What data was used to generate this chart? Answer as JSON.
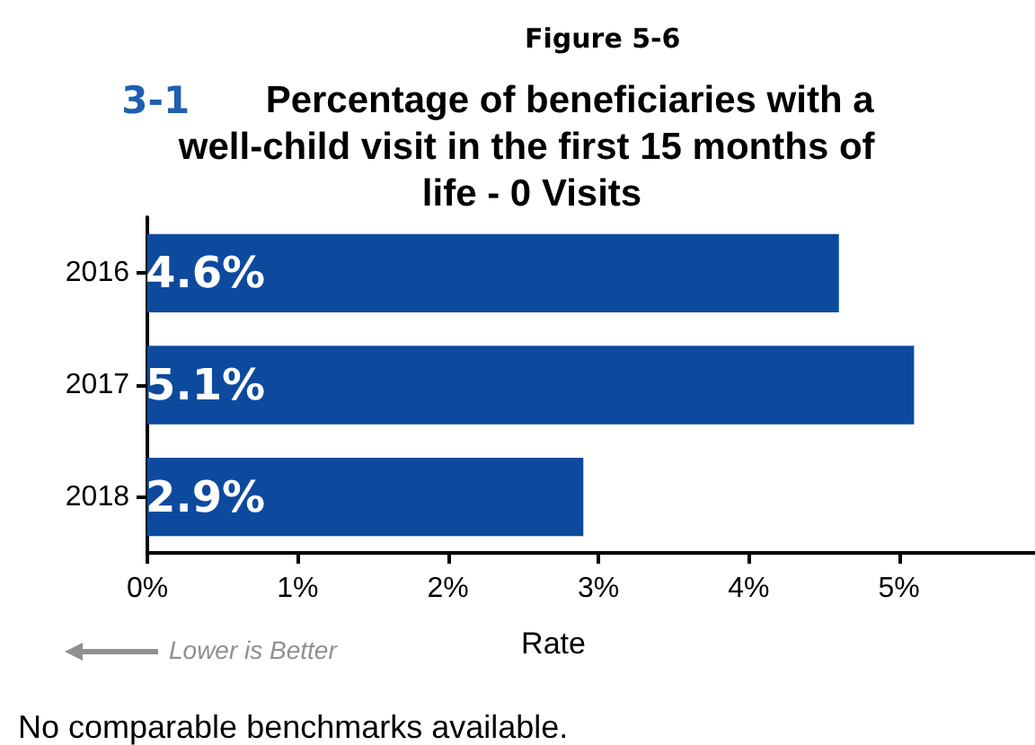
{
  "chart_data": {
    "type": "bar",
    "orientation": "horizontal",
    "subtitle": "Figure 5-6",
    "title": "3-1 Percentage of beneficiaries with a well-child visit in the first 15 months of life - 0 Visits",
    "xlabel": "Rate",
    "categories": [
      "2016",
      "2017",
      "2018"
    ],
    "values": [
      4.6,
      5.1,
      2.9
    ],
    "value_labels": [
      "4.6%",
      "5.1%",
      "2.9%"
    ],
    "color": "#0d4a9e",
    "xlim": [
      0,
      6
    ],
    "xticks": [
      {
        "value": 0,
        "label": "0%"
      },
      {
        "value": 1,
        "label": "1%"
      },
      {
        "value": 2,
        "label": "2%"
      },
      {
        "value": 3,
        "label": "3%"
      },
      {
        "value": 4,
        "label": "4%"
      },
      {
        "value": 5,
        "label": "5%"
      }
    ],
    "grid": false,
    "legend": false,
    "annotations": [
      "Lower is Better",
      "No comparable benchmarks available."
    ]
  }
}
